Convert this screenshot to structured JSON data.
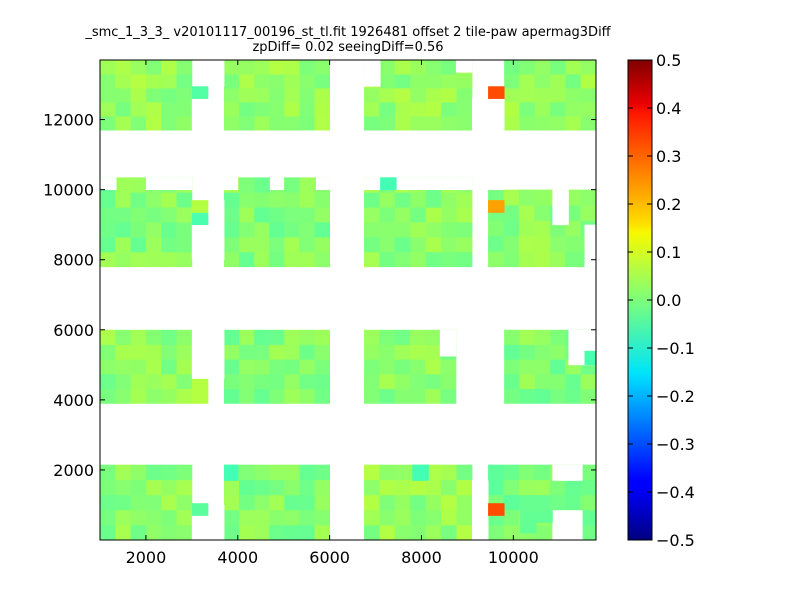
{
  "chart_data": {
    "type": "heatmap",
    "title": "_smc_1_3_3_ v20101117_00196_st_tl.fit 1926481 offset 2 tile-paw apermag3Diff",
    "subtitle": "zpDiff= 0.02 seeingDiff=0.56",
    "xlabel": "",
    "ylabel": "",
    "xlim": [
      1000,
      11800
    ],
    "ylim": [
      0,
      13700
    ],
    "xticks": [
      2000,
      4000,
      6000,
      8000,
      10000
    ],
    "xtick_labels": [
      "2000",
      "4000",
      "6000",
      "8000",
      "10000"
    ],
    "yticks": [
      2000,
      4000,
      6000,
      8000,
      10000,
      12000
    ],
    "ytick_labels": [
      "2000",
      "4000",
      "6000",
      "8000",
      "10000",
      "12000"
    ],
    "cell_size": [
      340,
      430
    ],
    "colorbar": {
      "colormap": "jet",
      "vmin": -0.5,
      "vmax": 0.5,
      "ticks": [
        -0.5,
        -0.4,
        -0.3,
        -0.2,
        -0.1,
        0.0,
        0.1,
        0.2,
        0.3,
        0.4,
        0.5
      ],
      "tick_labels": [
        "−0.5",
        "−0.4",
        "−0.3",
        "−0.2",
        "−0.1",
        "0.0",
        "0.1",
        "0.2",
        "0.3",
        "0.4",
        "0.5"
      ]
    },
    "detectors": [
      {
        "x": [
          1000,
          3000
        ],
        "y": [
          0,
          2150
        ],
        "value": 0.02
      },
      {
        "x": [
          3700,
          6000
        ],
        "y": [
          0,
          2150
        ],
        "value": 0.01
      },
      {
        "x": [
          6750,
          9100
        ],
        "y": [
          0,
          2150
        ],
        "value": 0.03
      },
      {
        "x": [
          9450,
          11800
        ],
        "y": [
          0,
          2150
        ],
        "value": 0.0
      },
      {
        "x": [
          1000,
          3000
        ],
        "y": [
          3900,
          6000
        ],
        "value": 0.02
      },
      {
        "x": [
          3700,
          6000
        ],
        "y": [
          3900,
          6000
        ],
        "value": 0.01
      },
      {
        "x": [
          6750,
          8750
        ],
        "y": [
          3900,
          6000
        ],
        "value": 0.02
      },
      {
        "x": [
          9800,
          11800
        ],
        "y": [
          3900,
          6000
        ],
        "value": 0.01
      },
      {
        "x": [
          1000,
          3000
        ],
        "y": [
          7800,
          10350
        ],
        "value": 0.01
      },
      {
        "x": [
          3700,
          6000
        ],
        "y": [
          7800,
          10350
        ],
        "value": 0.01
      },
      {
        "x": [
          6750,
          9100
        ],
        "y": [
          7800,
          10350
        ],
        "value": 0.02
      },
      {
        "x": [
          9450,
          11800
        ],
        "y": [
          7800,
          10000
        ],
        "value": 0.02
      },
      {
        "x": [
          1000,
          3000
        ],
        "y": [
          11700,
          13700
        ],
        "value": 0.03
      },
      {
        "x": [
          3700,
          6000
        ],
        "y": [
          11700,
          13700
        ],
        "value": 0.03
      },
      {
        "x": [
          6750,
          9100
        ],
        "y": [
          11700,
          13700
        ],
        "value": 0.03
      },
      {
        "x": [
          9800,
          11800
        ],
        "y": [
          11700,
          13700
        ],
        "value": 0.03
      }
    ],
    "gaps": [
      {
        "x": [
          3000,
          3350
        ],
        "y": [
          11700,
          12950
        ]
      },
      {
        "x": [
          3350,
          3700
        ],
        "y": [
          12950,
          13700
        ]
      },
      {
        "x": [
          3000,
          3700
        ],
        "y": [
          8000,
          9700
        ]
      },
      {
        "x": [
          3000,
          3700
        ],
        "y": [
          4600,
          6000
        ]
      },
      {
        "x": [
          3000,
          3700
        ],
        "y": [
          0,
          1000
        ]
      },
      {
        "x": [
          9450,
          9800
        ],
        "y": [
          11700,
          12950
        ]
      },
      {
        "x": [
          9450,
          9800
        ],
        "y": [
          10000,
          10350
        ]
      },
      {
        "x": [
          10850,
          11200
        ],
        "y": [
          9000,
          10000
        ]
      },
      {
        "x": [
          11550,
          11800
        ],
        "y": [
          7800,
          9000
        ]
      },
      {
        "x": [
          11200,
          11800
        ],
        "y": [
          5000,
          6000
        ]
      },
      {
        "x": [
          10850,
          11500
        ],
        "y": [
          0,
          850
        ]
      },
      {
        "x": [
          10850,
          11500
        ],
        "y": [
          1700,
          2150
        ]
      },
      {
        "x": [
          1000,
          1350
        ],
        "y": [
          10000,
          10350
        ]
      },
      {
        "x": [
          2000,
          3000
        ],
        "y": [
          10000,
          10350
        ]
      },
      {
        "x": [
          3700,
          4000
        ],
        "y": [
          10000,
          10350
        ]
      },
      {
        "x": [
          4700,
          5000
        ],
        "y": [
          10000,
          10350
        ]
      },
      {
        "x": [
          5700,
          6000
        ],
        "y": [
          10000,
          10350
        ]
      },
      {
        "x": [
          6750,
          7100
        ],
        "y": [
          10000,
          10350
        ]
      },
      {
        "x": [
          7450,
          9100
        ],
        "y": [
          10000,
          10350
        ]
      },
      {
        "x": [
          9100,
          9450
        ],
        "y": [
          11700,
          12600
        ]
      },
      {
        "x": [
          8750,
          9100
        ],
        "y": [
          13350,
          13700
        ]
      },
      {
        "x": [
          8400,
          8750
        ],
        "y": [
          5250,
          6000
        ]
      },
      {
        "x": [
          6750,
          7100
        ],
        "y": [
          12950,
          13700
        ]
      },
      {
        "x": [
          9100,
          9450
        ],
        "y": [
          0,
          1700
        ]
      }
    ],
    "highlights": [
      {
        "x": [
          9450,
          9800
        ],
        "y": [
          12600,
          12950
        ],
        "value": 0.33
      },
      {
        "x": [
          9450,
          9800
        ],
        "y": [
          9350,
          9700
        ],
        "value": 0.24
      },
      {
        "x": [
          9450,
          9800
        ],
        "y": [
          700,
          1050
        ],
        "value": 0.33
      },
      {
        "x": [
          3000,
          3350
        ],
        "y": [
          12600,
          12950
        ],
        "value": -0.05
      },
      {
        "x": [
          3000,
          3350
        ],
        "y": [
          9000,
          9350
        ],
        "value": -0.06
      },
      {
        "x": [
          3000,
          3350
        ],
        "y": [
          9350,
          9700
        ],
        "value": 0.07
      },
      {
        "x": [
          3000,
          3350
        ],
        "y": [
          3900,
          4250
        ],
        "value": 0.07
      },
      {
        "x": [
          3000,
          3350
        ],
        "y": [
          4250,
          4600
        ],
        "value": 0.07
      },
      {
        "x": [
          3000,
          3350
        ],
        "y": [
          700,
          1050
        ],
        "value": -0.04
      },
      {
        "x": [
          3700,
          4000
        ],
        "y": [
          1700,
          2150
        ],
        "value": -0.07
      },
      {
        "x": [
          7800,
          8150
        ],
        "y": [
          1700,
          2150
        ],
        "value": -0.07
      },
      {
        "x": [
          7100,
          7450
        ],
        "y": [
          10000,
          10350
        ],
        "value": -0.07
      },
      {
        "x": [
          11550,
          11800
        ],
        "y": [
          5000,
          5400
        ],
        "value": -0.06
      },
      {
        "x": [
          10150,
          10500
        ],
        "y": [
          200,
          500
        ],
        "value": -0.03
      },
      {
        "x": [
          10150,
          10850
        ],
        "y": [
          500,
          850
        ],
        "value": -0.03
      }
    ]
  }
}
